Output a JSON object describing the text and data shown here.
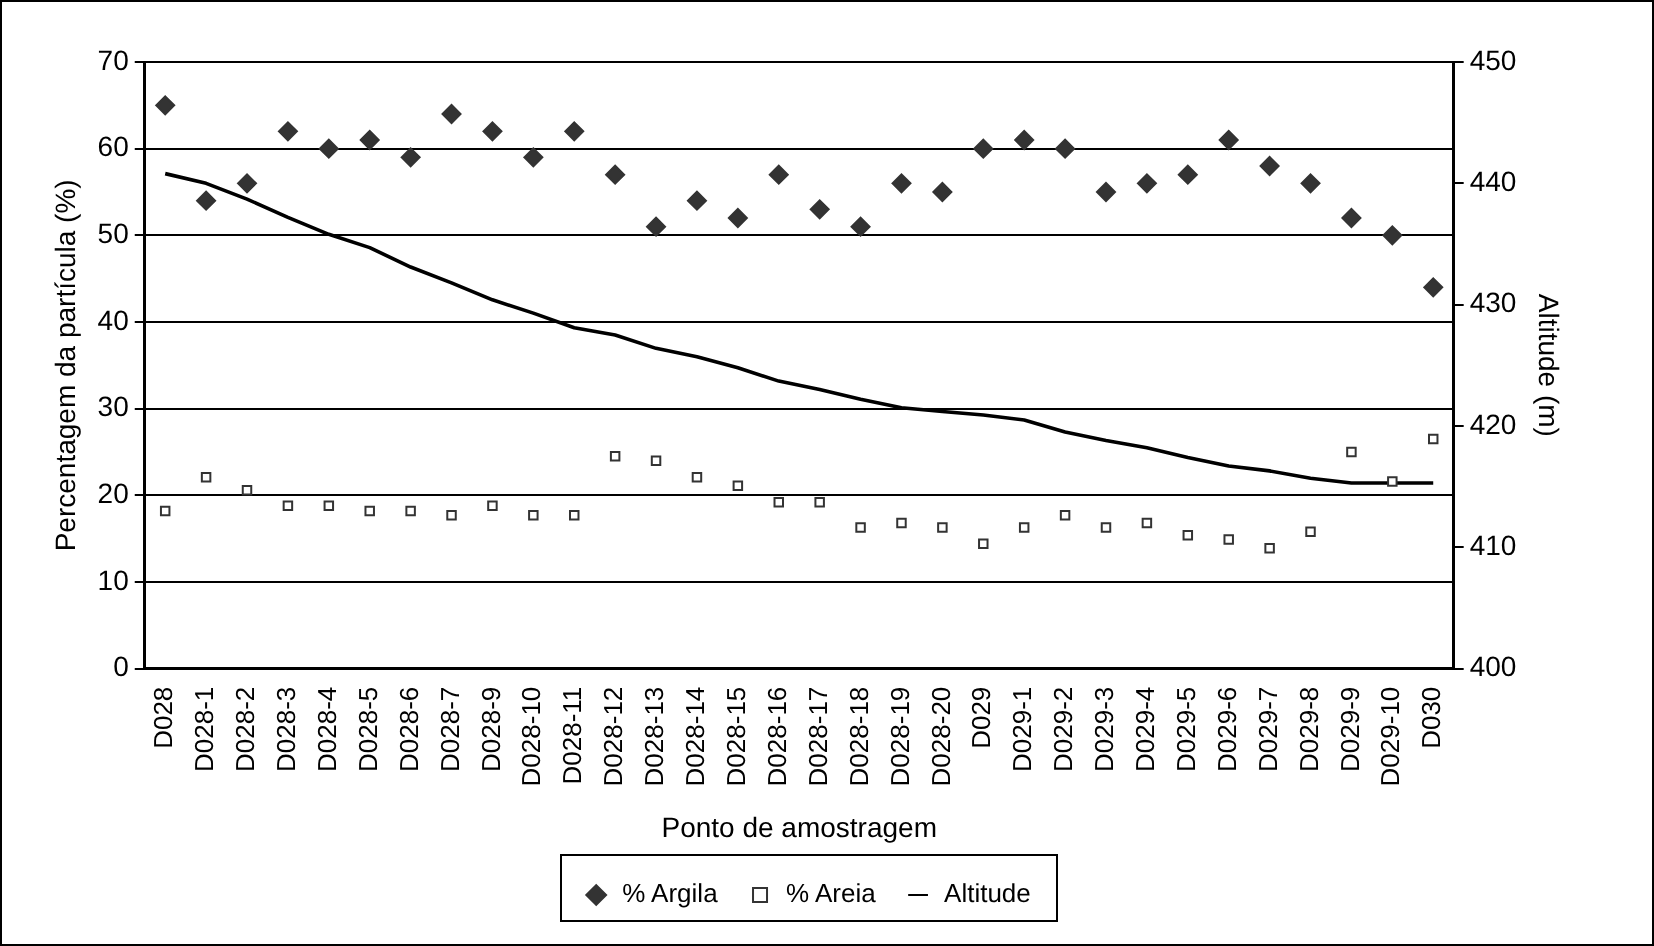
{
  "chart_data": {
    "type": "line",
    "xlabel": "Ponto de amostragem",
    "ylabel": "Percentagem da partícula (%)",
    "y2label": "Altitude (m)",
    "categories": [
      "D028",
      "D028-1",
      "D028-2",
      "D028-3",
      "D028-4",
      "D028-5",
      "D028-6",
      "D028-7",
      "D028-9",
      "D028-10",
      "D028-11",
      "D028-12",
      "D028-13",
      "D028-14",
      "D028-15",
      "D028-16",
      "D028-17",
      "D028-18",
      "D028-19",
      "D028-20",
      "D029",
      "D029-1",
      "D029-2",
      "D029-3",
      "D029-4",
      "D029-5",
      "D029-6",
      "D029-7",
      "D029-8",
      "D029-9",
      "D029-10",
      "D030"
    ],
    "series": [
      {
        "name": "% Argila",
        "type": "scatter",
        "marker": "diamond",
        "color": "#333333",
        "values": [
          65,
          54,
          56,
          62,
          60,
          61,
          59,
          64,
          62,
          59,
          62,
          57,
          51,
          54,
          52,
          57,
          53,
          51,
          56,
          55,
          60,
          61,
          60,
          55,
          56,
          57,
          61,
          58,
          56,
          52,
          50,
          44
        ]
      },
      {
        "name": "% Areia",
        "type": "scatter",
        "marker": "square",
        "color": "#333333",
        "values": [
          18.2,
          22.1,
          20.6,
          18.8,
          18.8,
          18.2,
          18.2,
          17.7,
          18.8,
          17.7,
          17.7,
          24.5,
          24,
          22.1,
          21.1,
          19.2,
          19.2,
          16.3,
          16.8,
          16.3,
          14.4,
          16.3,
          17.7,
          16.3,
          16.8,
          15.4,
          14.9,
          13.9,
          15.8,
          25,
          21.6,
          26.5
        ]
      },
      {
        "name": "Altitude",
        "type": "line",
        "marker": "none",
        "line_style": "solid",
        "axis": "y2",
        "color": "#000000",
        "values": [
          440.8,
          440,
          438.7,
          437.2,
          435.8,
          434.7,
          433.1,
          431.8,
          430.4,
          429.3,
          428.1,
          427.5,
          426.4,
          425.7,
          424.8,
          423.7,
          423,
          422.2,
          421.5,
          421.2,
          420.9,
          420.5,
          419.5,
          418.8,
          418.2,
          417.4,
          416.7,
          416.3,
          415.7,
          415.3,
          415.3,
          415.3
        ]
      }
    ],
    "ylim": [
      0,
      70
    ],
    "yticks": [
      0,
      10,
      20,
      30,
      40,
      50,
      60,
      70
    ],
    "y2lim": [
      400,
      450
    ],
    "y2ticks": [
      400,
      410,
      420,
      430,
      440,
      450
    ],
    "grid": "y",
    "legend": "bottom"
  }
}
